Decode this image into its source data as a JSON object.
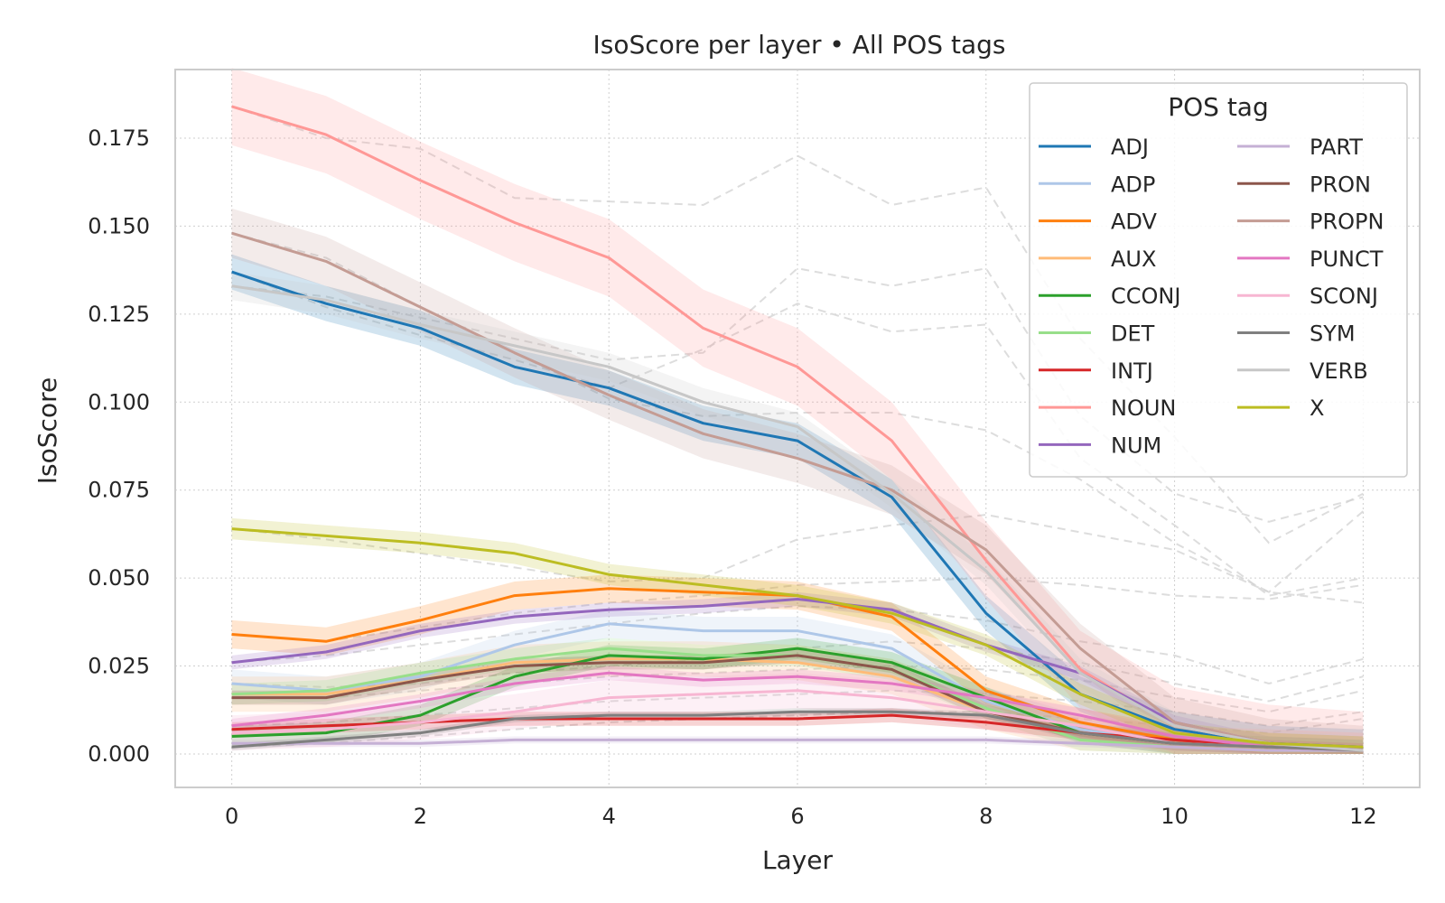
{
  "chart_data": {
    "type": "line",
    "title": "IsoScore per layer • All POS tags",
    "xlabel": "Layer",
    "ylabel": "IsoScore",
    "xlim": [
      -0.6,
      12.6
    ],
    "ylim": [
      -0.0095,
      0.1945
    ],
    "xticks": [
      0,
      2,
      4,
      6,
      8,
      10,
      12
    ],
    "xtick_labels": [
      "0",
      "2",
      "4",
      "6",
      "8",
      "10",
      "12"
    ],
    "yticks": [
      0,
      0.025,
      0.05,
      0.075,
      0.1,
      0.125,
      0.15,
      0.175
    ],
    "ytick_labels": [
      "0.000",
      "0.025",
      "0.050",
      "0.075",
      "0.100",
      "0.125",
      "0.150",
      "0.175"
    ],
    "grid": true,
    "grid_style": "dotted",
    "legend": {
      "title": "POS tag",
      "position": "top-right",
      "columns": 2
    },
    "x": [
      0,
      1,
      2,
      3,
      4,
      5,
      6,
      7,
      8,
      9,
      10,
      11,
      12
    ],
    "series": [
      {
        "name": "ADJ",
        "color": "#1f77b4",
        "values": [
          0.137,
          0.128,
          0.121,
          0.11,
          0.104,
          0.094,
          0.089,
          0.073,
          0.04,
          0.017,
          0.007,
          0.003,
          0.002
        ],
        "band": 0.005
      },
      {
        "name": "ADP",
        "color": "#aec7e8",
        "values": [
          0.02,
          0.018,
          0.022,
          0.031,
          0.037,
          0.035,
          0.035,
          0.03,
          0.015,
          0.007,
          0.003,
          0.002,
          0.001
        ],
        "band": 0.004
      },
      {
        "name": "ADV",
        "color": "#ff7f0e",
        "values": [
          0.034,
          0.032,
          0.038,
          0.045,
          0.047,
          0.046,
          0.045,
          0.039,
          0.018,
          0.009,
          0.004,
          0.002,
          0.001
        ],
        "band": 0.004
      },
      {
        "name": "AUX",
        "color": "#ffbb78",
        "values": [
          0.017,
          0.017,
          0.021,
          0.026,
          0.027,
          0.027,
          0.026,
          0.022,
          0.012,
          0.006,
          0.003,
          0.002,
          0.001
        ],
        "band": 0.005
      },
      {
        "name": "CCONJ",
        "color": "#2ca02c",
        "values": [
          0.005,
          0.006,
          0.011,
          0.022,
          0.028,
          0.027,
          0.03,
          0.026,
          0.016,
          0.006,
          0.003,
          0.002,
          0.001
        ],
        "band": 0.003
      },
      {
        "name": "DET",
        "color": "#98df8a",
        "values": [
          0.017,
          0.018,
          0.023,
          0.027,
          0.03,
          0.028,
          0.028,
          0.024,
          0.013,
          0.004,
          0.002,
          0.001,
          0.001
        ],
        "band": 0.003
      },
      {
        "name": "INTJ",
        "color": "#d62728",
        "values": [
          0.007,
          0.008,
          0.009,
          0.01,
          0.01,
          0.01,
          0.01,
          0.011,
          0.009,
          0.006,
          0.004,
          0.002,
          0.001
        ],
        "band": 0.002
      },
      {
        "name": "NOUN",
        "color": "#ff9896",
        "values": [
          0.184,
          0.176,
          0.163,
          0.151,
          0.141,
          0.121,
          0.11,
          0.089,
          0.055,
          0.024,
          0.008,
          0.003,
          0.001
        ],
        "band": 0.011
      },
      {
        "name": "NUM",
        "color": "#9467bd",
        "values": [
          0.026,
          0.029,
          0.035,
          0.039,
          0.041,
          0.042,
          0.044,
          0.041,
          0.031,
          0.023,
          0.009,
          0.003,
          0.002
        ],
        "band": 0.002
      },
      {
        "name": "PART",
        "color": "#c5b0d5",
        "values": [
          0.003,
          0.003,
          0.003,
          0.004,
          0.004,
          0.004,
          0.004,
          0.004,
          0.004,
          0.003,
          0.002,
          0.001,
          0.001
        ],
        "band": 0.001
      },
      {
        "name": "PRON",
        "color": "#8c564b",
        "values": [
          0.016,
          0.016,
          0.021,
          0.025,
          0.026,
          0.026,
          0.028,
          0.024,
          0.012,
          0.006,
          0.003,
          0.002,
          0.001
        ],
        "band": 0.002
      },
      {
        "name": "PROPN",
        "color": "#c49c94",
        "values": [
          0.148,
          0.14,
          0.127,
          0.114,
          0.102,
          0.091,
          0.084,
          0.075,
          0.058,
          0.03,
          0.009,
          0.003,
          0.001
        ],
        "band": 0.007
      },
      {
        "name": "PUNCT",
        "color": "#e377c2",
        "values": [
          0.008,
          0.011,
          0.015,
          0.02,
          0.023,
          0.021,
          0.022,
          0.02,
          0.016,
          0.011,
          0.005,
          0.002,
          0.001
        ],
        "band": 0.002
      },
      {
        "name": "SCONJ",
        "color": "#f7b6d2",
        "values": [
          0.006,
          0.007,
          0.009,
          0.012,
          0.016,
          0.017,
          0.018,
          0.016,
          0.012,
          0.008,
          0.003,
          0.002,
          0.001
        ],
        "band": 0.005
      },
      {
        "name": "SYM",
        "color": "#7f7f7f",
        "values": [
          0.002,
          0.004,
          0.006,
          0.01,
          0.011,
          0.011,
          0.012,
          0.012,
          0.011,
          0.006,
          0.003,
          0.002,
          0.001
        ],
        "band": 0.001
      },
      {
        "name": "VERB",
        "color": "#c7c7c7",
        "values": [
          0.133,
          0.129,
          0.122,
          0.116,
          0.11,
          0.1,
          0.093,
          0.074,
          0.052,
          0.023,
          0.008,
          0.003,
          0.001
        ],
        "band": 0.004
      },
      {
        "name": "X",
        "color": "#bcbd22",
        "values": [
          0.064,
          0.062,
          0.06,
          0.057,
          0.051,
          0.048,
          0.045,
          0.04,
          0.031,
          0.017,
          0.006,
          0.003,
          0.002
        ],
        "band": 0.003
      }
    ],
    "background_runs": [
      [
        0.184,
        0.175,
        0.172,
        0.158,
        0.157,
        0.156,
        0.17,
        0.156,
        0.161,
        0.118,
        0.09,
        0.06,
        0.074
      ],
      [
        0.133,
        0.13,
        0.124,
        0.118,
        0.112,
        0.114,
        0.138,
        0.133,
        0.138,
        0.096,
        0.074,
        0.066,
        0.073
      ],
      [
        0.137,
        0.127,
        0.119,
        0.112,
        0.104,
        0.115,
        0.128,
        0.12,
        0.122,
        0.084,
        0.065,
        0.045,
        0.05
      ],
      [
        0.148,
        0.141,
        0.127,
        0.114,
        0.101,
        0.096,
        0.097,
        0.097,
        0.092,
        0.078,
        0.06,
        0.046,
        0.043
      ],
      [
        0.064,
        0.061,
        0.057,
        0.053,
        0.049,
        0.05,
        0.061,
        0.065,
        0.068,
        0.063,
        0.058,
        0.046,
        0.069
      ],
      [
        0.034,
        0.032,
        0.036,
        0.04,
        0.043,
        0.045,
        0.048,
        0.049,
        0.05,
        0.048,
        0.045,
        0.044,
        0.048
      ],
      [
        0.026,
        0.028,
        0.031,
        0.034,
        0.037,
        0.04,
        0.042,
        0.041,
        0.038,
        0.032,
        0.028,
        0.02,
        0.027
      ],
      [
        0.02,
        0.019,
        0.02,
        0.023,
        0.025,
        0.027,
        0.03,
        0.032,
        0.03,
        0.026,
        0.02,
        0.015,
        0.022
      ],
      [
        0.016,
        0.016,
        0.018,
        0.02,
        0.022,
        0.023,
        0.024,
        0.025,
        0.024,
        0.021,
        0.016,
        0.012,
        0.018
      ],
      [
        0.008,
        0.009,
        0.011,
        0.013,
        0.015,
        0.016,
        0.017,
        0.018,
        0.017,
        0.015,
        0.012,
        0.008,
        0.012
      ],
      [
        0.002,
        0.003,
        0.005,
        0.007,
        0.009,
        0.01,
        0.011,
        0.012,
        0.012,
        0.01,
        0.008,
        0.006,
        0.01
      ]
    ]
  }
}
